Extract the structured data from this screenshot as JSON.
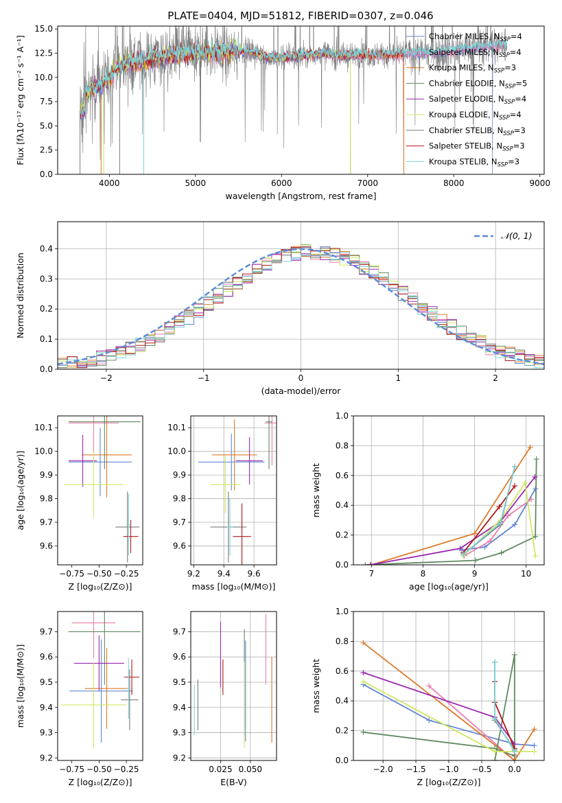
{
  "title": "PLATE=0404, MJD=51812, FIBERID=0307, z=0.046",
  "colors": {
    "chabrier_miles": "#5f86d3",
    "salpeter_miles": "#e87dae",
    "kroupa_miles": "#dd7a2a",
    "chabrier_elodie": "#5f8a5f",
    "salpeter_elodie": "#9b27b0",
    "kroupa_elodie": "#cfe760",
    "chabrier_stelib": "#7a7a7a",
    "salpeter_stelib": "#b01818",
    "kroupa_stelib": "#7ad3d8",
    "normal": "#5b8bd8"
  },
  "chart_data": [
    {
      "id": "spectrum",
      "type": "line",
      "title": "PLATE=0404, MJD=51812, FIBERID=0307, z=0.046",
      "xlabel": "wavelength [Angstrom, rest frame]",
      "ylabel": "Flux [fλ10⁻¹⁷ erg cm⁻² s⁻¹ A⁻¹]",
      "xlim": [
        3400,
        9050
      ],
      "ylim": [
        0,
        15.3
      ],
      "xticks": [
        4000,
        5000,
        6000,
        7000,
        8000,
        9000
      ],
      "yticks": [
        0.0,
        2.5,
        5.0,
        7.5,
        10.0,
        12.5,
        15.0
      ],
      "ytick_labels": [
        "0.0",
        "2.5",
        "5.0",
        "7.5",
        "10.0",
        "12.5",
        "15.0"
      ],
      "legend_position": "top-right",
      "legend": [
        {
          "name": "Chabrier MILES, N",
          "sub": "SSP",
          "tail": "=4",
          "color": "#5f86d3"
        },
        {
          "name": "Salpeter MILES, N",
          "sub": "SSP",
          "tail": "=4",
          "color": "#e87dae"
        },
        {
          "name": "Kroupa MILES, N",
          "sub": "SSP",
          "tail": "=3",
          "color": "#dd7a2a"
        },
        {
          "name": "Chabrier ELODIE, N",
          "sub": "SSP",
          "tail": "=5",
          "color": "#5f8a5f"
        },
        {
          "name": "Salpeter ELODIE, N",
          "sub": "SSP",
          "tail": "=4",
          "color": "#9b27b0"
        },
        {
          "name": "Kroupa ELODIE, N",
          "sub": "SSP",
          "tail": "=4",
          "color": "#cfe760"
        },
        {
          "name": "Chabrier STELIB, N",
          "sub": "SSP",
          "tail": "=3",
          "color": "#7a7a7a"
        },
        {
          "name": "Salpeter STELIB, N",
          "sub": "SSP",
          "tail": "=3",
          "color": "#b01818"
        },
        {
          "name": "Kroupa STELIB, N",
          "sub": "SSP",
          "tail": "=3",
          "color": "#7ad3d8"
        }
      ],
      "continuum": [
        [
          3650,
          7.3
        ],
        [
          3700,
          8.0
        ],
        [
          3800,
          8.8
        ],
        [
          3900,
          9.2
        ],
        [
          4000,
          10.0
        ],
        [
          4100,
          11.2
        ],
        [
          4300,
          11.6
        ],
        [
          4500,
          12.0
        ],
        [
          4700,
          12.3
        ],
        [
          4900,
          12.4
        ],
        [
          5100,
          12.7
        ],
        [
          5300,
          12.6
        ],
        [
          5500,
          12.8
        ],
        [
          5700,
          12.5
        ],
        [
          5900,
          12.0
        ],
        [
          6100,
          12.2
        ],
        [
          6300,
          12.3
        ],
        [
          6500,
          12.5
        ],
        [
          6700,
          12.2
        ],
        [
          6900,
          12.4
        ],
        [
          7100,
          12.3
        ],
        [
          7300,
          12.4
        ],
        [
          7500,
          12.5
        ],
        [
          7800,
          12.6
        ],
        [
          8000,
          12.8
        ],
        [
          8200,
          13.1
        ],
        [
          8400,
          13.3
        ],
        [
          8600,
          13.4
        ]
      ],
      "sharp_features": [
        3660,
        3905,
        3935,
        4120,
        4400,
        6800,
        7420
      ]
    },
    {
      "id": "residuals",
      "type": "histogram",
      "xlabel": "(data-model)/error",
      "ylabel": "Normed distribution",
      "xlim": [
        -2.5,
        2.5
      ],
      "ylim": [
        0,
        0.49
      ],
      "xticks": [
        -2,
        -1,
        0,
        1,
        2
      ],
      "xtick_labels": [
        "−2",
        "−1",
        "0",
        "1",
        "2"
      ],
      "yticks": [
        0.0,
        0.1,
        0.2,
        0.3,
        0.4
      ],
      "ytick_labels": [
        "0.0",
        "0.1",
        "0.2",
        "0.3",
        "0.4"
      ],
      "legend_position": "top-right",
      "legend_label": "𝒩(0, 1)",
      "bin_width": 0.1
    },
    {
      "id": "age_vs_Z",
      "type": "errorbar",
      "xlabel": "Z [log₁₀(Z/Z⊙)]",
      "ylabel": "age  [log₁₀(age/yr)]",
      "xlim": [
        -0.88,
        -0.1
      ],
      "ylim": [
        9.52,
        10.15
      ],
      "xticks": [
        -0.75,
        -0.5,
        -0.25
      ],
      "xtick_labels": [
        "−0.75",
        "−0.50",
        "−0.25"
      ],
      "yticks": [
        9.6,
        9.7,
        9.8,
        9.9,
        10.0,
        10.1
      ],
      "ytick_labels": [
        "9.6",
        "9.7",
        "9.8",
        "9.9",
        "10.0",
        "10.1"
      ],
      "points": [
        {
          "c": "chabrier_miles",
          "x": -0.49,
          "xerr": 0.29,
          "y": 9.955,
          "yerr": 0.145
        },
        {
          "c": "salpeter_miles",
          "x": -0.55,
          "xerr": 0.23,
          "y": 10.12,
          "yerr": 0.13
        },
        {
          "c": "kroupa_miles",
          "x": -0.43,
          "xerr": 0.23,
          "y": 9.985,
          "yerr": 0.18
        },
        {
          "c": "chabrier_elodie",
          "x": -0.45,
          "xerr": 0.33,
          "y": 10.125,
          "yerr": 0.2
        },
        {
          "c": "salpeter_elodie",
          "x": -0.65,
          "xerr": 0.13,
          "y": 9.96,
          "yerr": 0.11
        },
        {
          "c": "kroupa_elodie",
          "x": -0.55,
          "xerr": 0.27,
          "y": 9.86,
          "yerr": 0.14
        },
        {
          "c": "chabrier_stelib",
          "x": -0.24,
          "xerr": 0.11,
          "y": 9.68,
          "yerr": 0.15
        },
        {
          "c": "salpeter_stelib",
          "x": -0.21,
          "xerr": 0.07,
          "y": 9.64,
          "yerr": 0.07
        },
        {
          "c": "kroupa_stelib",
          "x": -0.23,
          "xerr": 0.02,
          "y": 9.69,
          "yerr": 0.13
        }
      ]
    },
    {
      "id": "age_vs_mass",
      "type": "errorbar",
      "xlabel": "mass [log₁₀(M/M⊙)]",
      "ylabel": "",
      "xlim": [
        9.18,
        9.75
      ],
      "ylim": [
        9.52,
        10.15
      ],
      "xticks": [
        9.2,
        9.4,
        9.6
      ],
      "xtick_labels": [
        "9.2",
        "9.4",
        "9.6"
      ],
      "yticks": [
        9.6,
        9.7,
        9.8,
        9.9,
        10.0,
        10.1
      ],
      "ytick_labels": [
        "9.6",
        "9.7",
        "9.8",
        "9.9",
        "10.0",
        "10.1"
      ],
      "points": [
        {
          "c": "chabrier_miles",
          "x": 9.45,
          "xerr": 0.22,
          "y": 9.955,
          "yerr": 0.12
        },
        {
          "c": "salpeter_miles",
          "x": 9.72,
          "xerr": 0.05,
          "y": 10.12,
          "yerr": 0.18
        },
        {
          "c": "kroupa_miles",
          "x": 9.47,
          "xerr": 0.15,
          "y": 9.985,
          "yerr": 0.15
        },
        {
          "c": "chabrier_elodie",
          "x": 9.7,
          "xerr": 0.02,
          "y": 10.125,
          "yerr": 0.2
        },
        {
          "c": "salpeter_elodie",
          "x": 9.57,
          "xerr": 0.09,
          "y": 9.96,
          "yerr": 0.1
        },
        {
          "c": "kroupa_elodie",
          "x": 9.41,
          "xerr": 0.1,
          "y": 9.86,
          "yerr": 0.12
        },
        {
          "c": "chabrier_stelib",
          "x": 9.43,
          "xerr": 0.12,
          "y": 9.68,
          "yerr": 0.15
        },
        {
          "c": "salpeter_stelib",
          "x": 9.52,
          "xerr": 0.06,
          "y": 9.64,
          "yerr": 0.14
        },
        {
          "c": "kroupa_stelib",
          "x": 9.44,
          "xerr": 0.02,
          "y": 9.68,
          "yerr": 0.12
        }
      ]
    },
    {
      "id": "mass_weight_vs_age",
      "type": "line",
      "xlabel": "age  [log₁₀(age/yr)]",
      "ylabel": "mass weight",
      "xlim": [
        6.65,
        10.35
      ],
      "ylim": [
        0,
        1
      ],
      "xticks": [
        7,
        8,
        9,
        10
      ],
      "xtick_labels": [
        "7",
        "8",
        "9",
        "10"
      ],
      "yticks": [
        0.0,
        0.2,
        0.4,
        0.6,
        0.8,
        1.0
      ],
      "ytick_labels": [
        "0.0",
        "0.2",
        "0.4",
        "0.6",
        "0.8",
        "1.0"
      ],
      "series": [
        {
          "c": "chabrier_miles",
          "x": [
            8.75,
            9.2,
            9.78,
            10.18
          ],
          "y": [
            0.1,
            0.12,
            0.27,
            0.51
          ]
        },
        {
          "c": "salpeter_miles",
          "x": [
            8.8,
            9.3,
            9.65,
            10.1
          ],
          "y": [
            0.06,
            0.16,
            0.33,
            0.44
          ]
        },
        {
          "c": "kroupa_miles",
          "x": [
            7,
            9.0,
            10.08
          ],
          "y": [
            0.0,
            0.21,
            0.79
          ]
        },
        {
          "c": "chabrier_elodie",
          "x": [
            6.88,
            9.02,
            9.52,
            10.18,
            10.2
          ],
          "y": [
            0.0,
            0.03,
            0.08,
            0.19,
            0.71
          ]
        },
        {
          "c": "salpeter_elodie",
          "x": [
            6.98,
            8.72,
            9.5,
            10.17
          ],
          "y": [
            0.0,
            0.11,
            0.29,
            0.59
          ]
        },
        {
          "c": "kroupa_elodie",
          "x": [
            8.78,
            9.5,
            9.98,
            10.18
          ],
          "y": [
            0.06,
            0.3,
            0.55,
            0.06
          ]
        },
        {
          "c": "chabrier_stelib",
          "x": [
            8.78,
            9.5,
            9.78
          ],
          "y": [
            0.07,
            0.27,
            0.66
          ]
        },
        {
          "c": "salpeter_stelib",
          "x": [
            8.78,
            9.48,
            9.78
          ],
          "y": [
            0.08,
            0.39,
            0.53
          ]
        },
        {
          "c": "kroupa_stelib",
          "x": [
            8.78,
            9.5,
            9.78
          ],
          "y": [
            0.07,
            0.28,
            0.66
          ]
        }
      ]
    },
    {
      "id": "mass_vs_Z",
      "type": "errorbar",
      "xlabel": "Z [log₁₀(Z/Z⊙)]",
      "ylabel": "mass [log₁₀(M/M⊙)]",
      "xlim": [
        -0.88,
        -0.1
      ],
      "ylim": [
        9.19,
        9.78
      ],
      "xticks": [
        -0.75,
        -0.5,
        -0.25
      ],
      "xtick_labels": [
        "−0.75",
        "−0.50",
        "−0.25"
      ],
      "yticks": [
        9.2,
        9.3,
        9.4,
        9.5,
        9.6,
        9.7
      ],
      "ytick_labels": [
        "9.2",
        "9.3",
        "9.4",
        "9.5",
        "9.6",
        "9.7"
      ],
      "points": [
        {
          "c": "chabrier_miles",
          "x": -0.48,
          "xerr": 0.29,
          "y": 9.465,
          "yerr": 0.205
        },
        {
          "c": "salpeter_miles",
          "x": -0.55,
          "xerr": 0.2,
          "y": 9.735,
          "yerr": 0.14
        },
        {
          "c": "kroupa_miles",
          "x": -0.43,
          "xerr": 0.2,
          "y": 9.475,
          "yerr": 0.16
        },
        {
          "c": "chabrier_elodie",
          "x": -0.45,
          "xerr": 0.33,
          "y": 9.7,
          "yerr": 0.21
        },
        {
          "c": "salpeter_elodie",
          "x": -0.5,
          "xerr": 0.23,
          "y": 9.575,
          "yerr": 0.11
        },
        {
          "c": "kroupa_elodie",
          "x": -0.55,
          "xerr": 0.3,
          "y": 9.41,
          "yerr": 0.17
        },
        {
          "c": "chabrier_stelib",
          "x": -0.22,
          "xerr": 0.08,
          "y": 9.43,
          "yerr": 0.12
        },
        {
          "c": "salpeter_stelib",
          "x": -0.2,
          "xerr": 0.07,
          "y": 9.52,
          "yerr": 0.07
        },
        {
          "c": "kroupa_stelib",
          "x": -0.23,
          "xerr": 0.02,
          "y": 9.475,
          "yerr": 0.12
        }
      ]
    },
    {
      "id": "mass_vs_ebv",
      "type": "errorbar",
      "xlabel": "E(B-V)",
      "ylabel": "",
      "xlim": [
        0.0,
        0.072
      ],
      "ylim": [
        9.19,
        9.78
      ],
      "xticks": [
        0.025,
        0.05
      ],
      "xtick_labels": [
        "0.025",
        "0.050"
      ],
      "yticks": [
        9.2,
        9.3,
        9.4,
        9.5,
        9.6,
        9.7
      ],
      "ytick_labels": [
        "9.2",
        "9.3",
        "9.4",
        "9.5",
        "9.6",
        "9.7"
      ],
      "points": [
        {
          "c": "chabrier_miles",
          "x": 0.046,
          "xerr": 0,
          "y": 9.465,
          "yerr": 0.2
        },
        {
          "c": "salpeter_miles",
          "x": 0.063,
          "xerr": 0,
          "y": 9.63,
          "yerr": 0.14
        },
        {
          "c": "kroupa_miles",
          "x": 0.068,
          "xerr": 0,
          "y": 9.43,
          "yerr": 0.17
        },
        {
          "c": "chabrier_elodie",
          "x": 0.045,
          "xerr": 0,
          "y": 9.5,
          "yerr": 0.21
        },
        {
          "c": "salpeter_elodie",
          "x": 0.025,
          "xerr": 0,
          "y": 9.61,
          "yerr": 0.13
        },
        {
          "c": "kroupa_elodie",
          "x": 0.045,
          "xerr": 0,
          "y": 9.41,
          "yerr": 0.17
        },
        {
          "c": "chabrier_stelib",
          "x": 0.006,
          "xerr": 0,
          "y": 9.41,
          "yerr": 0.1
        },
        {
          "c": "salpeter_stelib",
          "x": 0.027,
          "xerr": 0,
          "y": 9.52,
          "yerr": 0.07
        },
        {
          "c": "kroupa_stelib",
          "x": 0.003,
          "xerr": 0,
          "y": 9.39,
          "yerr": 0.1
        }
      ]
    },
    {
      "id": "mass_weight_vs_Z",
      "type": "line",
      "xlabel": "Z [log₁₀(Z/Z⊙)]",
      "ylabel": "mass weight",
      "xlim": [
        -2.45,
        0.45
      ],
      "ylim": [
        0,
        1
      ],
      "xticks": [
        -2.0,
        -1.5,
        -1.0,
        -0.5,
        0.0
      ],
      "xtick_labels": [
        "−2.0",
        "−1.5",
        "−1.0",
        "−0.5",
        "0.0"
      ],
      "yticks": [
        0.0,
        0.2,
        0.4,
        0.6,
        0.8,
        1.0
      ],
      "ytick_labels": [
        "0.0",
        "0.2",
        "0.4",
        "0.6",
        "0.8",
        "1.0"
      ],
      "series": [
        {
          "c": "chabrier_miles",
          "x": [
            -2.3,
            -1.3,
            0.0,
            0.3
          ],
          "y": [
            0.51,
            0.27,
            0.11,
            0.1
          ]
        },
        {
          "c": "salpeter_miles",
          "x": [
            -1.3,
            0.0,
            0.0
          ],
          "y": [
            0.5,
            0.0,
            0.04
          ]
        },
        {
          "c": "kroupa_miles",
          "x": [
            -2.3,
            0.0,
            0.3
          ],
          "y": [
            0.79,
            0.0,
            0.21
          ]
        },
        {
          "c": "chabrier_elodie",
          "x": [
            -2.3,
            -0.3,
            0.0,
            0.0,
            -0.3,
            -0.3
          ],
          "y": [
            0.19,
            0.08,
            0.03,
            0.71,
            0.0,
            0.0
          ]
        },
        {
          "c": "salpeter_elodie",
          "x": [
            -2.3,
            -0.3,
            0.0
          ],
          "y": [
            0.59,
            0.29,
            0.11
          ]
        },
        {
          "c": "kroupa_elodie",
          "x": [
            -2.3,
            -0.3,
            0.3
          ],
          "y": [
            0.53,
            0.06,
            0.06
          ]
        },
        {
          "c": "chabrier_stelib",
          "x": [
            -0.3,
            -0.3,
            0.0
          ],
          "y": [
            0.66,
            0.27,
            0.07
          ]
        },
        {
          "c": "salpeter_stelib",
          "x": [
            -0.3,
            -0.3,
            0.0
          ],
          "y": [
            0.53,
            0.39,
            0.08
          ]
        },
        {
          "c": "kroupa_stelib",
          "x": [
            -0.3,
            -0.3,
            0.0
          ],
          "y": [
            0.66,
            0.28,
            0.06
          ]
        }
      ]
    }
  ]
}
